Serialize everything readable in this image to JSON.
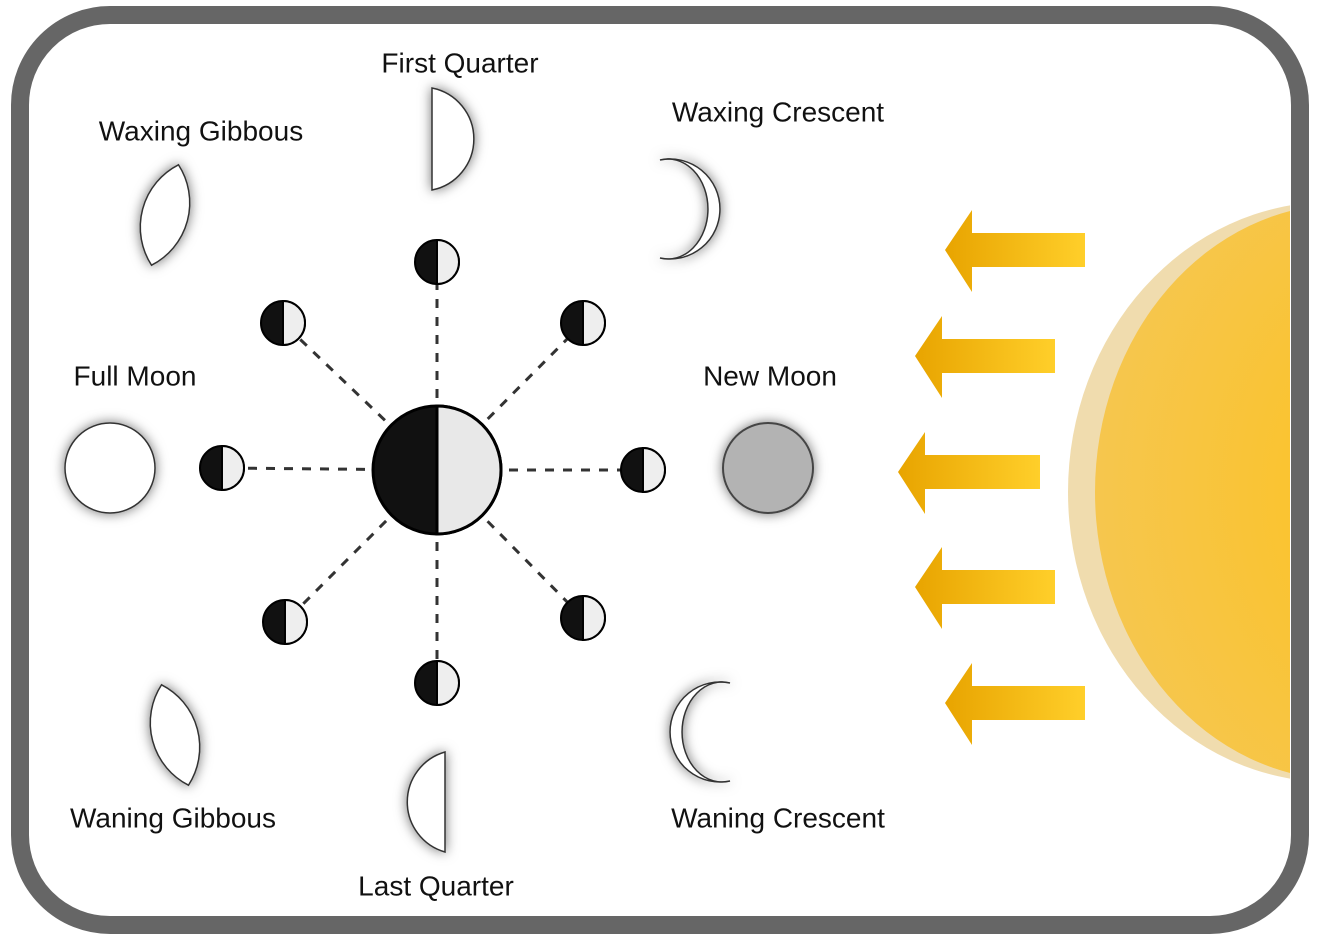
{
  "nodes": [
    {
      "label": "First Quarter"
    },
    {
      "label": "Waxing Crescent"
    },
    {
      "label": "Waxing Gibbous"
    },
    {
      "label": "Full Moon"
    },
    {
      "label": "New Moon"
    },
    {
      "label": "Waning Gibbous"
    },
    {
      "label": "Last Quarter"
    },
    {
      "label": "Waning Crescent"
    }
  ]
}
